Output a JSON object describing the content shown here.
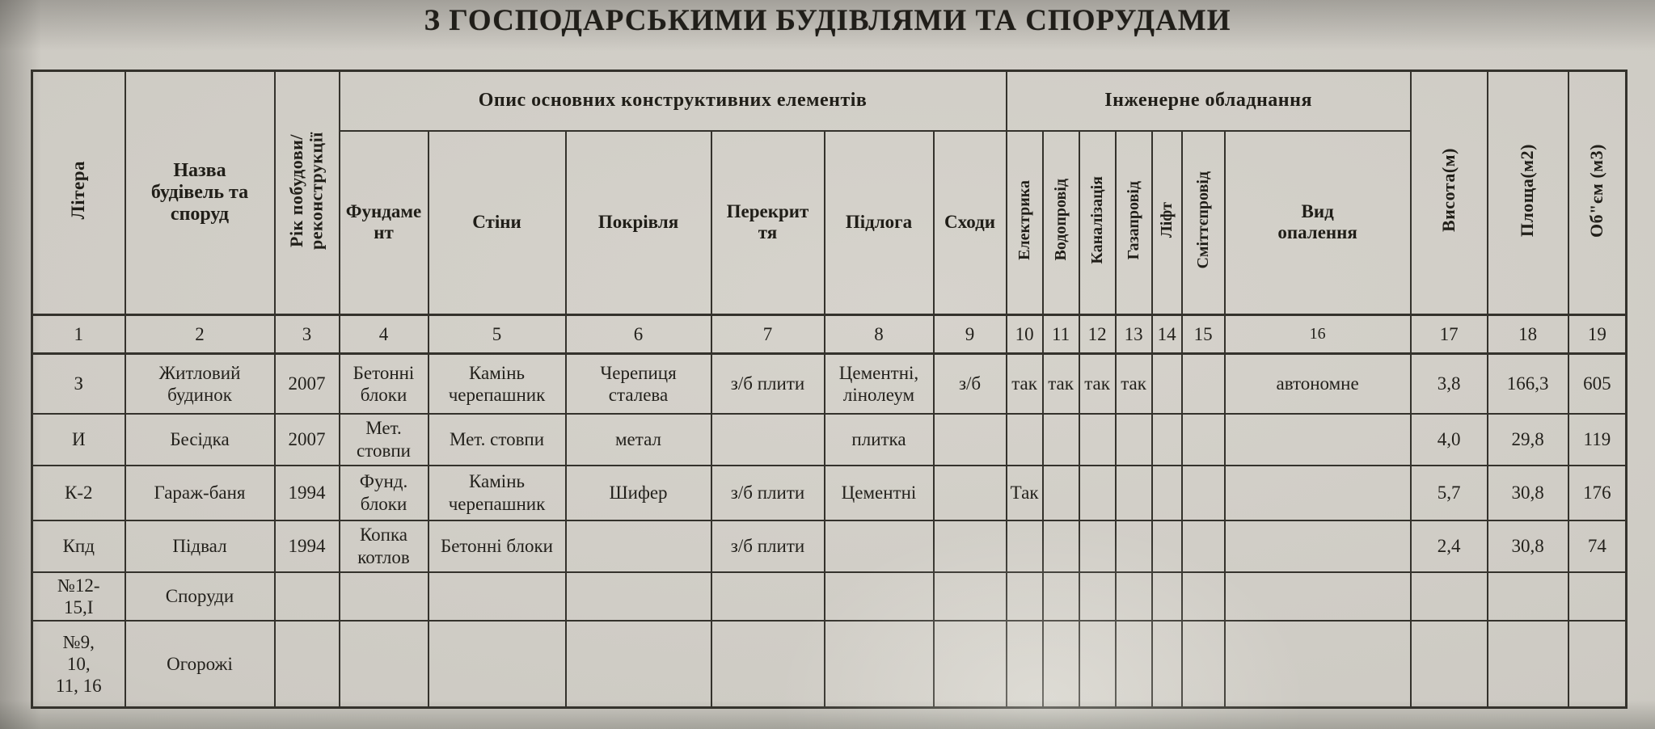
{
  "title": "З ГОСПОДАРСЬКИМИ БУДІВЛЯМИ ТА СПОРУДАМИ",
  "colors": {
    "paper": "#cdcac3",
    "ink": "#23211c",
    "line": "#34322c"
  },
  "table": {
    "group_headers": {
      "construction": "Опис основних конструктивних елементів",
      "engineering": "Інженерне обладнання"
    },
    "columns": [
      {
        "label": "Літера",
        "rotated": true
      },
      {
        "label": "Назва будівель та споруд",
        "rotated": false
      },
      {
        "label": "Рік побудови/ реконструкції",
        "rotated": true
      },
      {
        "label": "Фундамент",
        "rotated": false
      },
      {
        "label": "Стіни",
        "rotated": false
      },
      {
        "label": "Покрівля",
        "rotated": false
      },
      {
        "label": "Перекриття",
        "rotated": false
      },
      {
        "label": "Підлога",
        "rotated": false
      },
      {
        "label": "Сходи",
        "rotated": false
      },
      {
        "label": "Електрика",
        "rotated": true
      },
      {
        "label": "Водопровід",
        "rotated": true
      },
      {
        "label": "Каналізація",
        "rotated": true
      },
      {
        "label": "Газапровід",
        "rotated": true
      },
      {
        "label": "Ліфт",
        "rotated": true
      },
      {
        "label": "Сміттєпровід",
        "rotated": true
      },
      {
        "label": "Вид опалення",
        "rotated": false
      },
      {
        "label": "Висота(м)",
        "rotated": true
      },
      {
        "label": "Площа(м2)",
        "rotated": true
      },
      {
        "label": "Об\"єм (м3)",
        "rotated": true
      }
    ],
    "number_row": [
      "1",
      "2",
      "3",
      "4",
      "5",
      "6",
      "7",
      "8",
      "9",
      "10",
      "11",
      "12",
      "13",
      "14",
      "15",
      "16",
      "17",
      "18",
      "19"
    ],
    "rows": [
      [
        "З",
        "Житловий будинок",
        "2007",
        "Бетонні блоки",
        "Камінь черепашник",
        "Черепиця сталева",
        "з/б плити",
        "Цементні, лінолеум",
        "з/б",
        "так",
        "так",
        "так",
        "так",
        "",
        "",
        "автономне",
        "3,8",
        "166,3",
        "605"
      ],
      [
        "И",
        "Бесідка",
        "2007",
        "Мет. стовпи",
        "Мет. стовпи",
        "метал",
        "",
        "плитка",
        "",
        "",
        "",
        "",
        "",
        "",
        "",
        "",
        "4,0",
        "29,8",
        "119"
      ],
      [
        "К-2",
        "Гараж-баня",
        "1994",
        "Фунд. блоки",
        "Камінь черепашник",
        "Шифер",
        "з/б плити",
        "Цементні",
        "",
        "Так",
        "",
        "",
        "",
        "",
        "",
        "",
        "5,7",
        "30,8",
        "176"
      ],
      [
        "Кпд",
        "Підвал",
        "1994",
        "Копка котлов",
        "Бетонні блоки",
        "",
        "з/б плити",
        "",
        "",
        "",
        "",
        "",
        "",
        "",
        "",
        "",
        "2,4",
        "30,8",
        "74"
      ],
      [
        "№12- 15,І",
        "Споруди",
        "",
        "",
        "",
        "",
        "",
        "",
        "",
        "",
        "",
        "",
        "",
        "",
        "",
        "",
        "",
        "",
        ""
      ],
      [
        "№9, 10, 11, 16",
        "Огорожі",
        "",
        "",
        "",
        "",
        "",
        "",
        "",
        "",
        "",
        "",
        "",
        "",
        "",
        "",
        "",
        "",
        ""
      ]
    ]
  }
}
